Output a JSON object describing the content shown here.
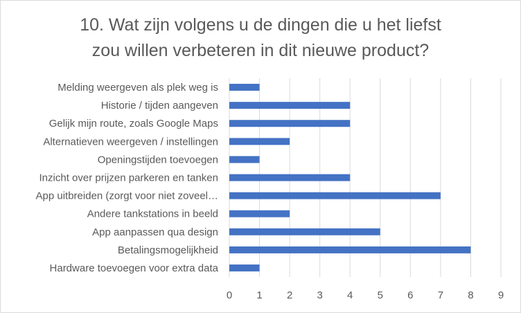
{
  "chart_data": {
    "type": "bar",
    "orientation": "horizontal",
    "title_lines": [
      "10. Wat zijn volgens u de dingen die u het liefst",
      "zou willen verbeteren in dit nieuwe product?"
    ],
    "categories": [
      "Melding weergeven als plek weg is",
      "Historie / tijden aangeven",
      "Gelijk mijn route, zoals Google Maps",
      "Alternatieven weergeven / instellingen",
      "Openingstijden toevoegen",
      "Inzicht over prijzen parkeren en tanken",
      "App uitbreiden (zorgt voor niet zoveel…",
      "Andere tankstations in beeld",
      "App aanpassen qua design",
      "Betalingsmogelijkheid",
      "Hardware toevoegen voor extra data"
    ],
    "values": [
      1,
      4,
      4,
      2,
      1,
      4,
      7,
      2,
      5,
      8,
      1
    ],
    "xlim": [
      0,
      9
    ],
    "xticks": [
      "0",
      "1",
      "2",
      "3",
      "4",
      "5",
      "6",
      "7",
      "8",
      "9"
    ],
    "grid": true,
    "legend": "none",
    "bar_color": "#4472c4",
    "grid_color": "#d9d9d9",
    "text_color": "#595959"
  }
}
